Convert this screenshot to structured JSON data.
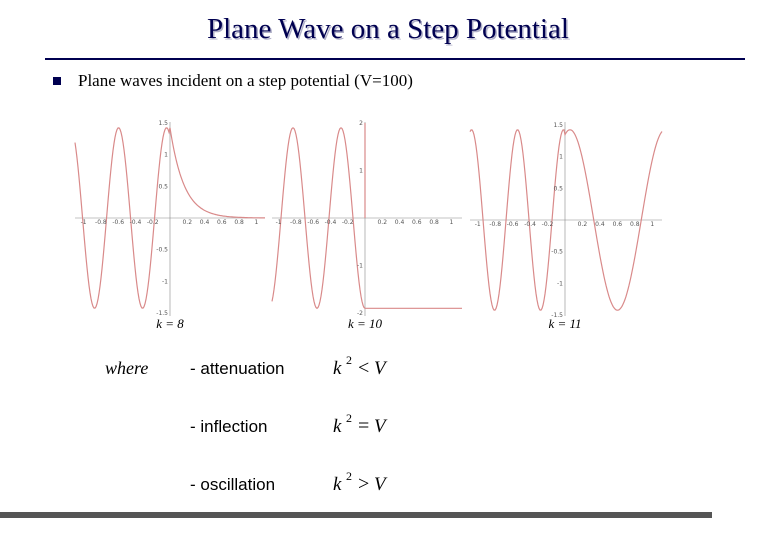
{
  "header": {
    "title": "Plane Wave on a Step Potential"
  },
  "bullet": {
    "text": "Plane waves incident on a step potential (V=100)"
  },
  "plots": [
    {
      "label": "k = 8",
      "xticks": [
        "-1",
        "-0.8",
        "-0.6",
        "-0.4",
        "-0.2",
        "0.2",
        "0.4",
        "0.6",
        "0.8",
        "1"
      ],
      "yticks": [
        "1.5",
        "1",
        "0.5",
        "-0.5",
        "-1",
        "-1.5"
      ]
    },
    {
      "label": "k = 10",
      "xticks": [
        "-1",
        "-0.8",
        "-0.6",
        "-0.4",
        "-0.2",
        "0.2",
        "0.4",
        "0.6",
        "0.8",
        "1"
      ],
      "yticks": [
        "2",
        "1",
        "-1",
        "-2"
      ]
    },
    {
      "label": "k = 11",
      "xticks": [
        "-1",
        "-0.8",
        "-0.6",
        "-0.4",
        "-0.2",
        "0.2",
        "0.4",
        "0.6",
        "0.8",
        "1"
      ],
      "yticks": [
        "1.5",
        "1",
        "0.5",
        "-0.5",
        "-1",
        "-1.5"
      ]
    }
  ],
  "legend": {
    "where": "where",
    "rows": [
      {
        "text": "- attenuation",
        "lhs": "k",
        "power": "2",
        "relation": "<",
        "rhs": "V"
      },
      {
        "text": "- inflection",
        "lhs": "k",
        "power": "2",
        "relation": "=",
        "rhs": "V"
      },
      {
        "text": "- oscillation",
        "lhs": "k",
        "power": "2",
        "relation": ">",
        "rhs": "V"
      }
    ]
  }
}
